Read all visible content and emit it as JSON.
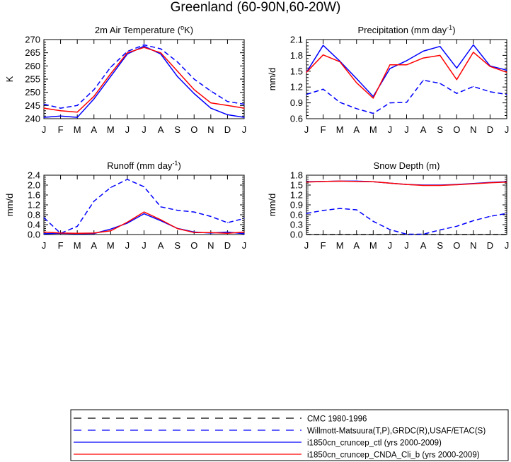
{
  "figure_title": "Greenland (60-90N,60-20W)",
  "months": [
    "J",
    "F",
    "M",
    "A",
    "M",
    "J",
    "J",
    "A",
    "S",
    "O",
    "N",
    "D",
    "J"
  ],
  "legend": [
    {
      "label": "CMC 1980-1996",
      "color": "#000000",
      "dash": true
    },
    {
      "label": "Willmott-Matsuura(T,P),GRDC(R),USAF/ETAC(S)",
      "color": "#0000ff",
      "dash": true
    },
    {
      "label": "i1850cn_cruncep_ctl (yrs 2000-2009)",
      "color": "#0000ff",
      "dash": false
    },
    {
      "label": "i1850cn_cruncep_CNDA_Cli_b (yrs 2000-2009)",
      "color": "#ff0000",
      "dash": false
    }
  ],
  "chart_data": [
    {
      "type": "line",
      "title": "2m Air Temperature (",
      "title_sup": "o",
      "title_after": "K)",
      "ylabel": "K",
      "ylim": [
        240,
        270
      ],
      "yticks": [
        240,
        245,
        250,
        255,
        260,
        265,
        270
      ],
      "ytick_labels": [
        "240",
        "245",
        "250",
        "255",
        "260",
        "265",
        "270"
      ],
      "categories": [
        "J",
        "F",
        "M",
        "A",
        "M",
        "J",
        "J",
        "A",
        "S",
        "O",
        "N",
        "D",
        "J"
      ],
      "series": [
        {
          "color": "#0000ff",
          "dash": true,
          "values": [
            245.5,
            244.0,
            245.0,
            251.0,
            259.5,
            265.5,
            268.0,
            266.5,
            261.5,
            255.0,
            250.5,
            246.5,
            245.5
          ]
        },
        {
          "color": "#0000ff",
          "dash": false,
          "values": [
            240.5,
            241.0,
            240.5,
            247.5,
            256.0,
            264.5,
            267.5,
            264.5,
            256.0,
            249.5,
            244.0,
            241.5,
            240.5
          ]
        },
        {
          "color": "#ff0000",
          "dash": false,
          "values": [
            244.0,
            243.0,
            242.5,
            248.5,
            257.0,
            265.0,
            267.0,
            265.0,
            258.0,
            251.0,
            246.0,
            245.0,
            244.0
          ]
        }
      ]
    },
    {
      "type": "line",
      "title": "Precipitation (mm day",
      "title_sup": "-1",
      "title_after": ")",
      "ylabel": "mm/d",
      "ylim": [
        0.6,
        2.1
      ],
      "yticks": [
        0.6,
        0.9,
        1.2,
        1.5,
        1.8,
        2.1
      ],
      "ytick_labels": [
        "0.6",
        "0.9",
        "1.2",
        "1.5",
        "1.8",
        "2.1"
      ],
      "categories": [
        "J",
        "F",
        "M",
        "A",
        "M",
        "J",
        "J",
        "A",
        "S",
        "O",
        "N",
        "D",
        "J"
      ],
      "series": [
        {
          "color": "#0000ff",
          "dash": true,
          "values": [
            1.06,
            1.16,
            0.91,
            0.79,
            0.7,
            0.9,
            0.91,
            1.33,
            1.27,
            1.08,
            1.21,
            1.11,
            1.06
          ]
        },
        {
          "color": "#0000ff",
          "dash": false,
          "values": [
            1.48,
            1.99,
            1.69,
            1.36,
            1.02,
            1.55,
            1.7,
            1.88,
            1.97,
            1.56,
            2.0,
            1.6,
            1.52
          ]
        },
        {
          "color": "#ff0000",
          "dash": false,
          "values": [
            1.48,
            1.81,
            1.68,
            1.28,
            0.99,
            1.62,
            1.62,
            1.75,
            1.8,
            1.34,
            1.86,
            1.59,
            1.48
          ]
        }
      ]
    },
    {
      "type": "line",
      "title": "Runoff (mm day",
      "title_sup": "-1",
      "title_after": ")",
      "ylabel": "mm/d",
      "ylim": [
        0.0,
        2.4
      ],
      "yticks": [
        0.0,
        0.4,
        0.8,
        1.2,
        1.6,
        2.0,
        2.4
      ],
      "ytick_labels": [
        "0.0",
        "0.4",
        "0.8",
        "1.2",
        "1.6",
        "2.0",
        "2.4"
      ],
      "categories": [
        "J",
        "F",
        "M",
        "A",
        "M",
        "J",
        "J",
        "A",
        "S",
        "O",
        "N",
        "D",
        "J"
      ],
      "series": [
        {
          "color": "#0000ff",
          "dash": true,
          "values": [
            0.68,
            0.05,
            0.33,
            1.35,
            1.9,
            2.23,
            1.93,
            1.12,
            0.98,
            0.91,
            0.73,
            0.48,
            0.65
          ]
        },
        {
          "color": "#0000ff",
          "dash": false,
          "values": [
            0.03,
            0.05,
            0.03,
            0.04,
            0.22,
            0.46,
            0.84,
            0.56,
            0.25,
            0.1,
            0.06,
            0.1,
            0.03
          ]
        },
        {
          "color": "#ff0000",
          "dash": false,
          "values": [
            0.1,
            0.06,
            0.05,
            0.06,
            0.15,
            0.5,
            0.91,
            0.6,
            0.24,
            0.08,
            0.08,
            0.05,
            0.1
          ]
        }
      ]
    },
    {
      "type": "line",
      "title": "Snow Depth (m)",
      "title_sup": "",
      "title_after": "",
      "ylabel": "mm/d",
      "ylim": [
        0.0,
        1.8
      ],
      "yticks": [
        0.0,
        0.3,
        0.6,
        0.9,
        1.2,
        1.5,
        1.8
      ],
      "ytick_labels": [
        "0.0",
        "0.3",
        "0.6",
        "0.9",
        "1.2",
        "1.5",
        "1.8"
      ],
      "categories": [
        "J",
        "F",
        "M",
        "A",
        "M",
        "J",
        "J",
        "A",
        "S",
        "O",
        "N",
        "D",
        "J"
      ],
      "series": [
        {
          "color": "#000000",
          "dash": true,
          "values": [
            0.0,
            0.0,
            0.0,
            0.0,
            0.0,
            0.0,
            0.0,
            0.0,
            0.0,
            0.0,
            0.0,
            0.0,
            0.0
          ]
        },
        {
          "color": "#0000ff",
          "dash": true,
          "values": [
            0.64,
            0.73,
            0.79,
            0.75,
            0.4,
            0.15,
            0.01,
            0.01,
            0.14,
            0.25,
            0.42,
            0.55,
            0.64
          ]
        },
        {
          "color": "#0000ff",
          "dash": false,
          "values": [
            1.6,
            1.61,
            1.62,
            1.62,
            1.6,
            1.56,
            1.52,
            1.5,
            1.5,
            1.52,
            1.55,
            1.58,
            1.6
          ]
        },
        {
          "color": "#ff0000",
          "dash": false,
          "values": [
            1.59,
            1.61,
            1.62,
            1.61,
            1.6,
            1.56,
            1.52,
            1.49,
            1.49,
            1.51,
            1.54,
            1.57,
            1.59
          ]
        }
      ]
    }
  ]
}
